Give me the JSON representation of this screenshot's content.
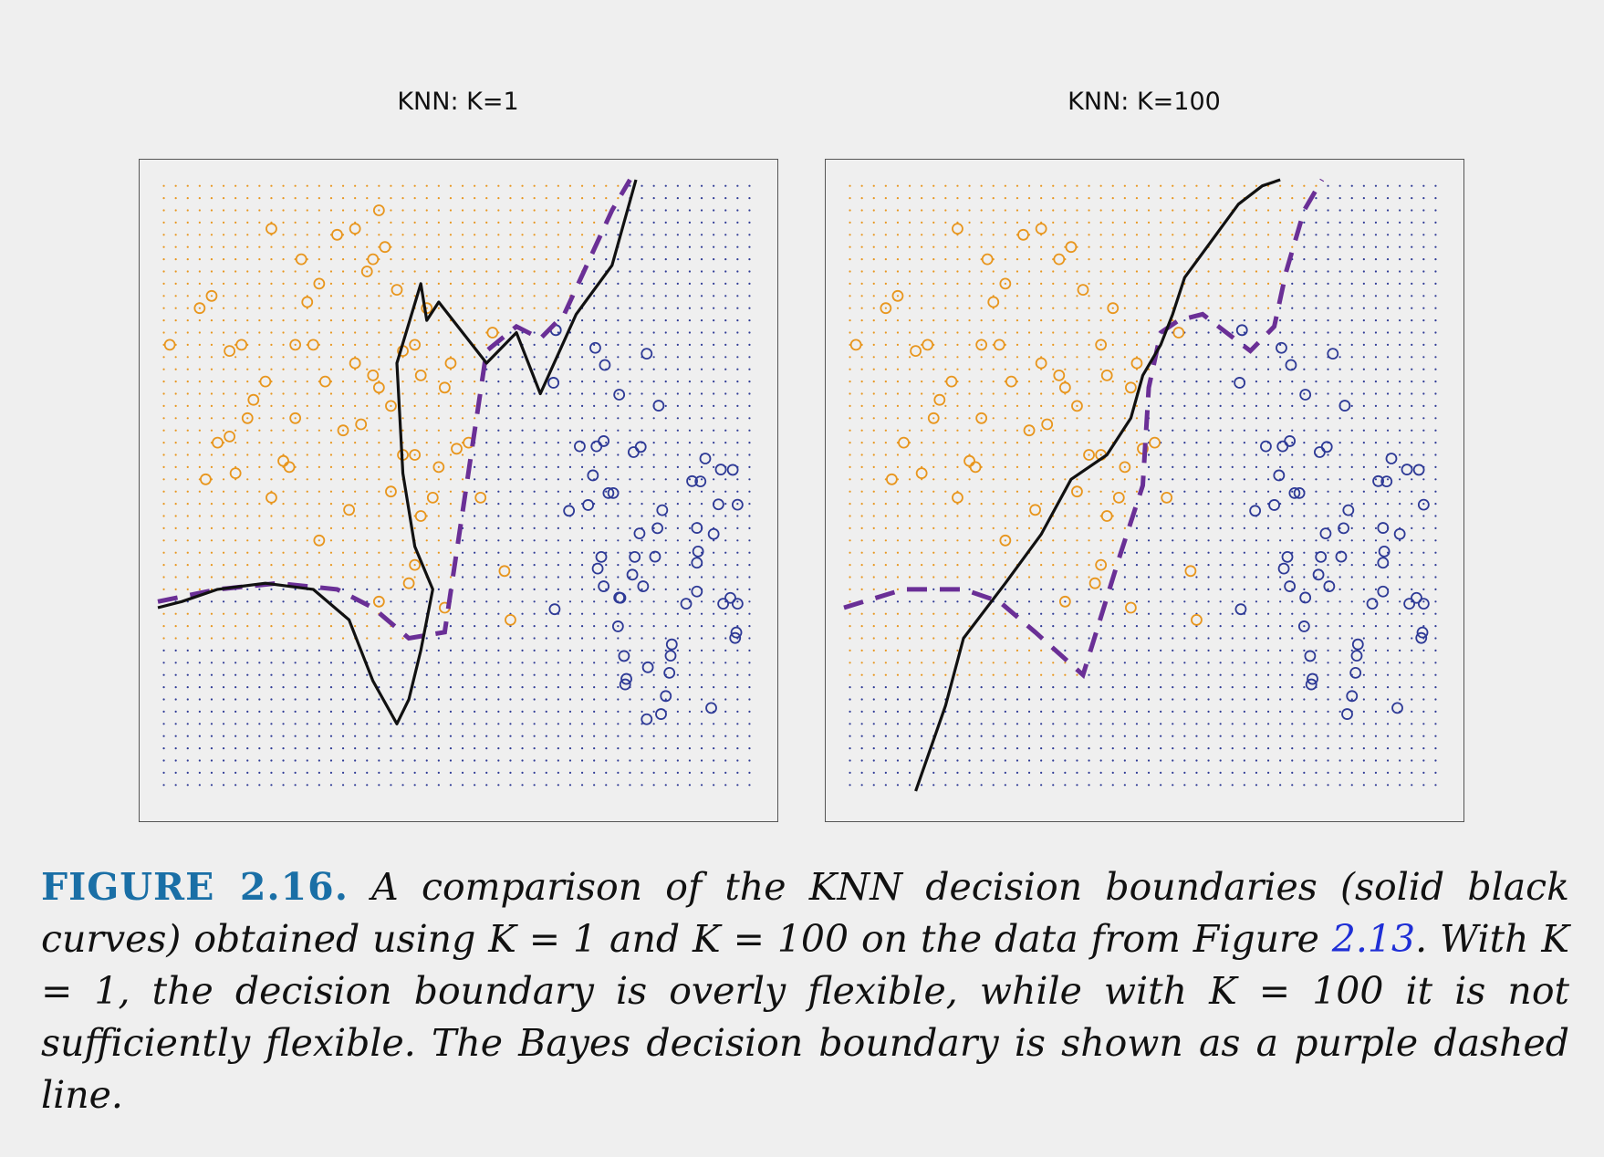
{
  "figure": {
    "label": "FIGURE 2.16.",
    "caption_before_ref": " A comparison of the KNN decision boundaries (solid black curves) obtained using K = 1 and K = 100 on the data from Figure ",
    "caption_ref": "2.13",
    "caption_after_ref": ". With K = 1, the decision boundary is overly flexible, while with K = 100 it is not sufficiently flexible. The Bayes decision boundary is shown as a purple dashed line."
  },
  "colors": {
    "orange": "#e8961e",
    "blue": "#2e3a96",
    "knn_boundary": "#111111",
    "bayes_boundary": "#6a2f96",
    "frame": "#555555"
  },
  "chart_data": [
    {
      "type": "scatter",
      "title": "KNN: K=1",
      "xlabel": "",
      "ylabel": "",
      "xlim": [
        0,
        100
      ],
      "ylim": [
        0,
        100
      ],
      "grid_dots": {
        "n": 50,
        "orange_region": "left/upper",
        "blue_region": "right/lower"
      },
      "series": [
        {
          "points_color": "orange",
          "x": [
            2,
            7,
            9,
            14,
            19,
            24,
            25,
            27,
            30,
            33,
            36,
            38,
            40,
            43,
            45,
            16,
            18,
            21,
            12,
            23,
            28,
            33,
            37,
            31,
            26,
            44,
            47,
            15,
            10,
            23,
            32,
            8,
            13,
            19,
            22,
            27,
            36,
            43,
            39,
            34,
            41,
            46,
            50,
            48,
            39,
            52,
            58,
            59,
            43,
            37,
            42,
            44,
            48,
            54,
            49,
            56,
            12,
            41,
            35,
            37
          ],
          "y": [
            73,
            79,
            81,
            73,
            92,
            87,
            80,
            83,
            91,
            92,
            87,
            89,
            82,
            73,
            79,
            64,
            67,
            54,
            72,
            61,
            67,
            70,
            66,
            59,
            73,
            68,
            53,
            61,
            57,
            73,
            46,
            51,
            52,
            48,
            53,
            41,
            68,
            55,
            49,
            60,
            55,
            48,
            56,
            66,
            63,
            57,
            36,
            28,
            37,
            31,
            34,
            45,
            30,
            48,
            70,
            75,
            58,
            72,
            85,
            95
          ]
        }
      ],
      "knn_boundary_x": [
        0,
        4,
        10,
        18,
        26,
        32,
        36,
        40,
        42,
        44,
        46,
        43,
        41,
        40,
        44,
        45,
        47,
        55,
        60,
        64,
        70,
        76,
        80
      ],
      "knn_boundary_y": [
        30,
        31,
        33,
        34,
        33,
        28,
        18,
        11,
        15,
        23,
        33,
        40,
        52,
        70,
        83,
        77,
        80,
        70,
        75,
        65,
        78,
        86,
        100
      ],
      "bayes_boundary_x": [
        0,
        10,
        20,
        30,
        36,
        42,
        48,
        55,
        60,
        64,
        68,
        76,
        79
      ],
      "bayes_boundary_y": [
        31,
        33,
        34,
        33,
        30,
        25,
        26,
        72,
        76,
        74,
        78,
        95,
        100
      ]
    },
    {
      "type": "scatter",
      "title": "KNN: K=100",
      "xlabel": "",
      "ylabel": "",
      "xlim": [
        0,
        100
      ],
      "ylim": [
        0,
        100
      ],
      "grid_dots": {
        "n": 50,
        "orange_region": "left/upper",
        "blue_region": "right/lower"
      },
      "series": [
        {
          "points_color": "orange",
          "x": [
            2,
            7,
            9,
            14,
            19,
            24,
            25,
            27,
            30,
            33,
            36,
            38,
            40,
            43,
            45,
            16,
            18,
            21,
            12,
            23,
            28,
            33,
            37,
            31,
            26,
            44,
            47,
            15,
            10,
            23,
            32,
            8,
            13,
            19,
            22,
            27,
            36,
            43,
            39,
            34,
            41,
            46,
            50,
            48,
            39,
            52,
            58,
            59,
            43,
            37,
            42,
            44,
            48,
            54,
            49,
            56
          ],
          "y": [
            73,
            79,
            81,
            73,
            92,
            87,
            80,
            83,
            91,
            92,
            87,
            89,
            82,
            73,
            79,
            64,
            67,
            54,
            72,
            61,
            67,
            70,
            66,
            59,
            73,
            68,
            53,
            61,
            57,
            73,
            46,
            51,
            52,
            48,
            53,
            41,
            68,
            55,
            49,
            60,
            55,
            48,
            56,
            66,
            63,
            57,
            36,
            28,
            37,
            31,
            34,
            45,
            30,
            48,
            70,
            75
          ]
        }
      ],
      "knn_boundary_x": [
        12,
        17,
        20,
        27,
        33,
        38,
        44,
        48,
        50,
        53,
        55,
        57,
        60,
        63,
        66,
        70,
        73
      ],
      "knn_boundary_y": [
        0,
        14,
        25,
        34,
        42,
        51,
        55,
        61,
        68,
        73,
        78,
        84,
        88,
        92,
        96,
        99,
        100
      ],
      "bayes_boundary_x": [
        0,
        10,
        20,
        26,
        32,
        40,
        46,
        50,
        51,
        53,
        56,
        60,
        68,
        72,
        74,
        77,
        80
      ],
      "bayes_boundary_y": [
        30,
        33,
        33,
        31,
        26,
        19,
        38,
        50,
        66,
        75,
        77,
        78,
        72,
        76,
        85,
        95,
        100
      ]
    }
  ]
}
